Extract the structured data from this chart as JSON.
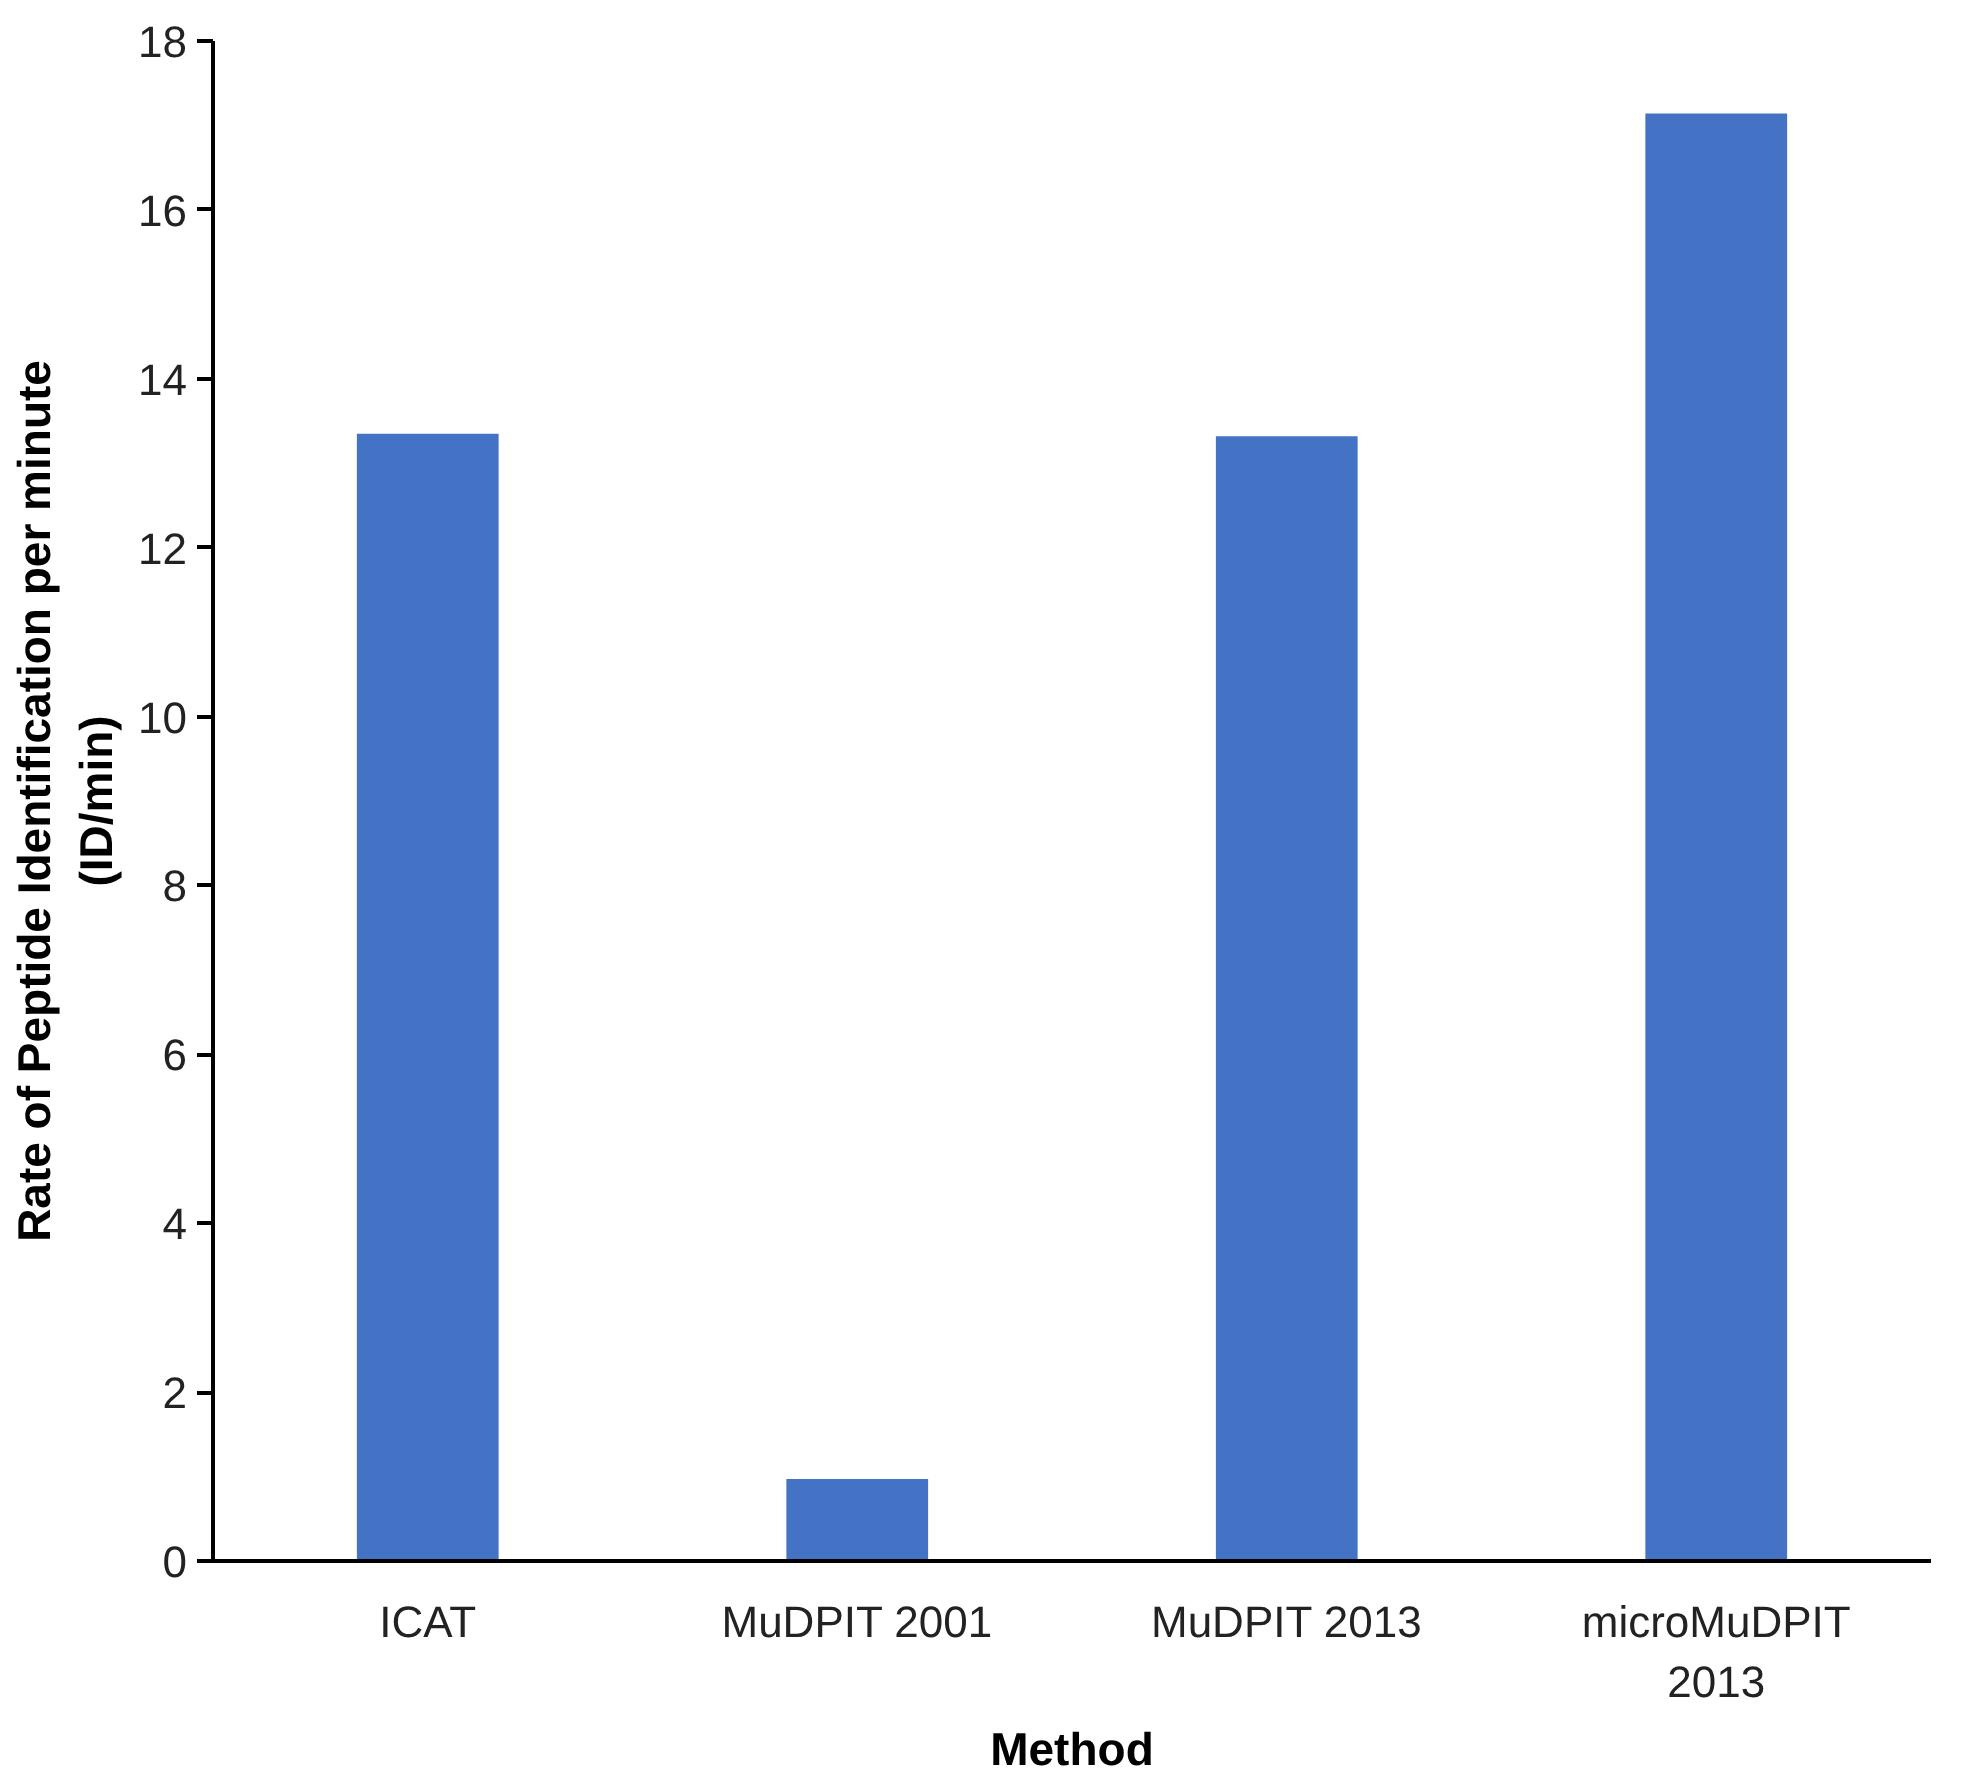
{
  "chart_data": {
    "type": "bar",
    "xlabel": "Method",
    "ylabel": "Rate of Peptide Identification per minute\n(ID/min)",
    "categories": [
      "ICAT",
      "MuDPIT 2001",
      "MuDPIT 2013",
      "microMuDPIT 2013"
    ],
    "values": [
      13.35,
      0.97,
      13.32,
      17.14
    ],
    "color": "#4472c4",
    "ylim": [
      0,
      18
    ],
    "yticks": [
      0,
      2,
      4,
      6,
      8,
      10,
      12,
      14,
      16,
      18
    ],
    "grid": false
  }
}
